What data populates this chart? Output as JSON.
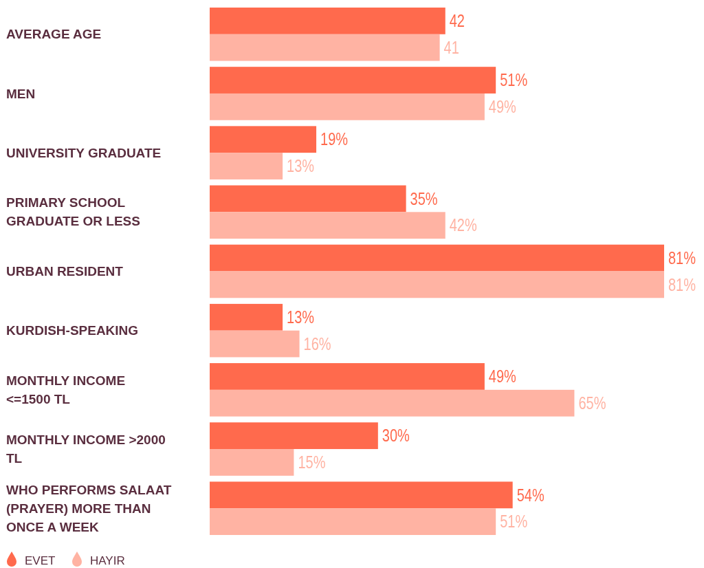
{
  "chart_data": {
    "type": "bar",
    "orientation": "horizontal",
    "categories": [
      "AVERAGE AGE",
      "MEN",
      "UNIVERSITY GRADUATE",
      "PRIMARY SCHOOL GRADUATE OR LESS",
      "URBAN RESIDENT",
      "KURDISH-SPEAKING",
      "MONTHLY INCOME <=1500 TL",
      "MONTHLY INCOME >2000 TL",
      "WHO PERFORMS SALAAT (PRAYER) MORE THAN ONCE A WEEK"
    ],
    "series": [
      {
        "name": "EVET",
        "color": "#ff6a4d",
        "values": [
          42,
          51,
          19,
          35,
          81,
          13,
          49,
          30,
          54
        ],
        "value_labels": [
          "42",
          "51%",
          "19%",
          "35%",
          "81%",
          "13%",
          "49%",
          "30%",
          "54%"
        ]
      },
      {
        "name": "HAYIR",
        "color": "#ffb3a3",
        "values": [
          41,
          49,
          13,
          42,
          81,
          16,
          65,
          15,
          51
        ],
        "value_labels": [
          "41",
          "49%",
          "13%",
          "42%",
          "81%",
          "16%",
          "65%",
          "15%",
          "51%"
        ]
      }
    ],
    "legend": "bottom"
  }
}
